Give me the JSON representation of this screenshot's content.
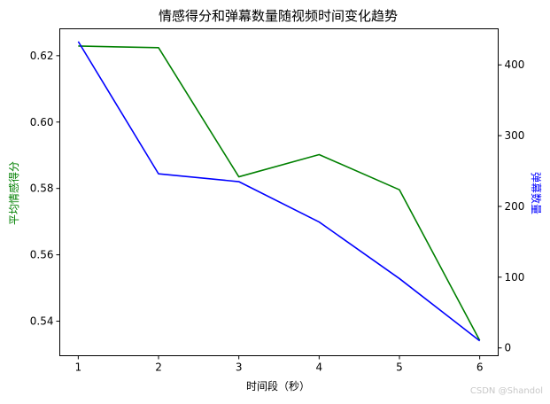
{
  "chart_data": {
    "type": "line",
    "title": "情感得分和弹幕数量随视频时间变化趋势",
    "xlabel": "时间段（秒）",
    "x": [
      1,
      2,
      3,
      4,
      5,
      6
    ],
    "xlim": [
      0.77,
      6.23
    ],
    "left_axis": {
      "label": "平均情感得分",
      "color": "#008000",
      "ylim": [
        0.5296,
        0.6281
      ],
      "ticks": [
        0.54,
        0.56,
        0.58,
        0.6,
        0.62
      ]
    },
    "right_axis": {
      "label": "弹幕数量",
      "color": "#0000ff",
      "ylim": [
        -11,
        451
      ],
      "ticks": [
        0,
        100,
        200,
        300,
        400
      ]
    },
    "series": [
      {
        "axis": "left",
        "color": "#008000",
        "values": [
          0.6229,
          0.6224,
          0.5835,
          0.5902,
          0.5796,
          0.5342
        ]
      },
      {
        "axis": "right",
        "color": "#0000ff",
        "values": [
          433,
          246,
          235,
          178,
          98,
          10
        ]
      }
    ],
    "grid": false,
    "legend": "none"
  },
  "watermark": "CSDN @Shandol"
}
